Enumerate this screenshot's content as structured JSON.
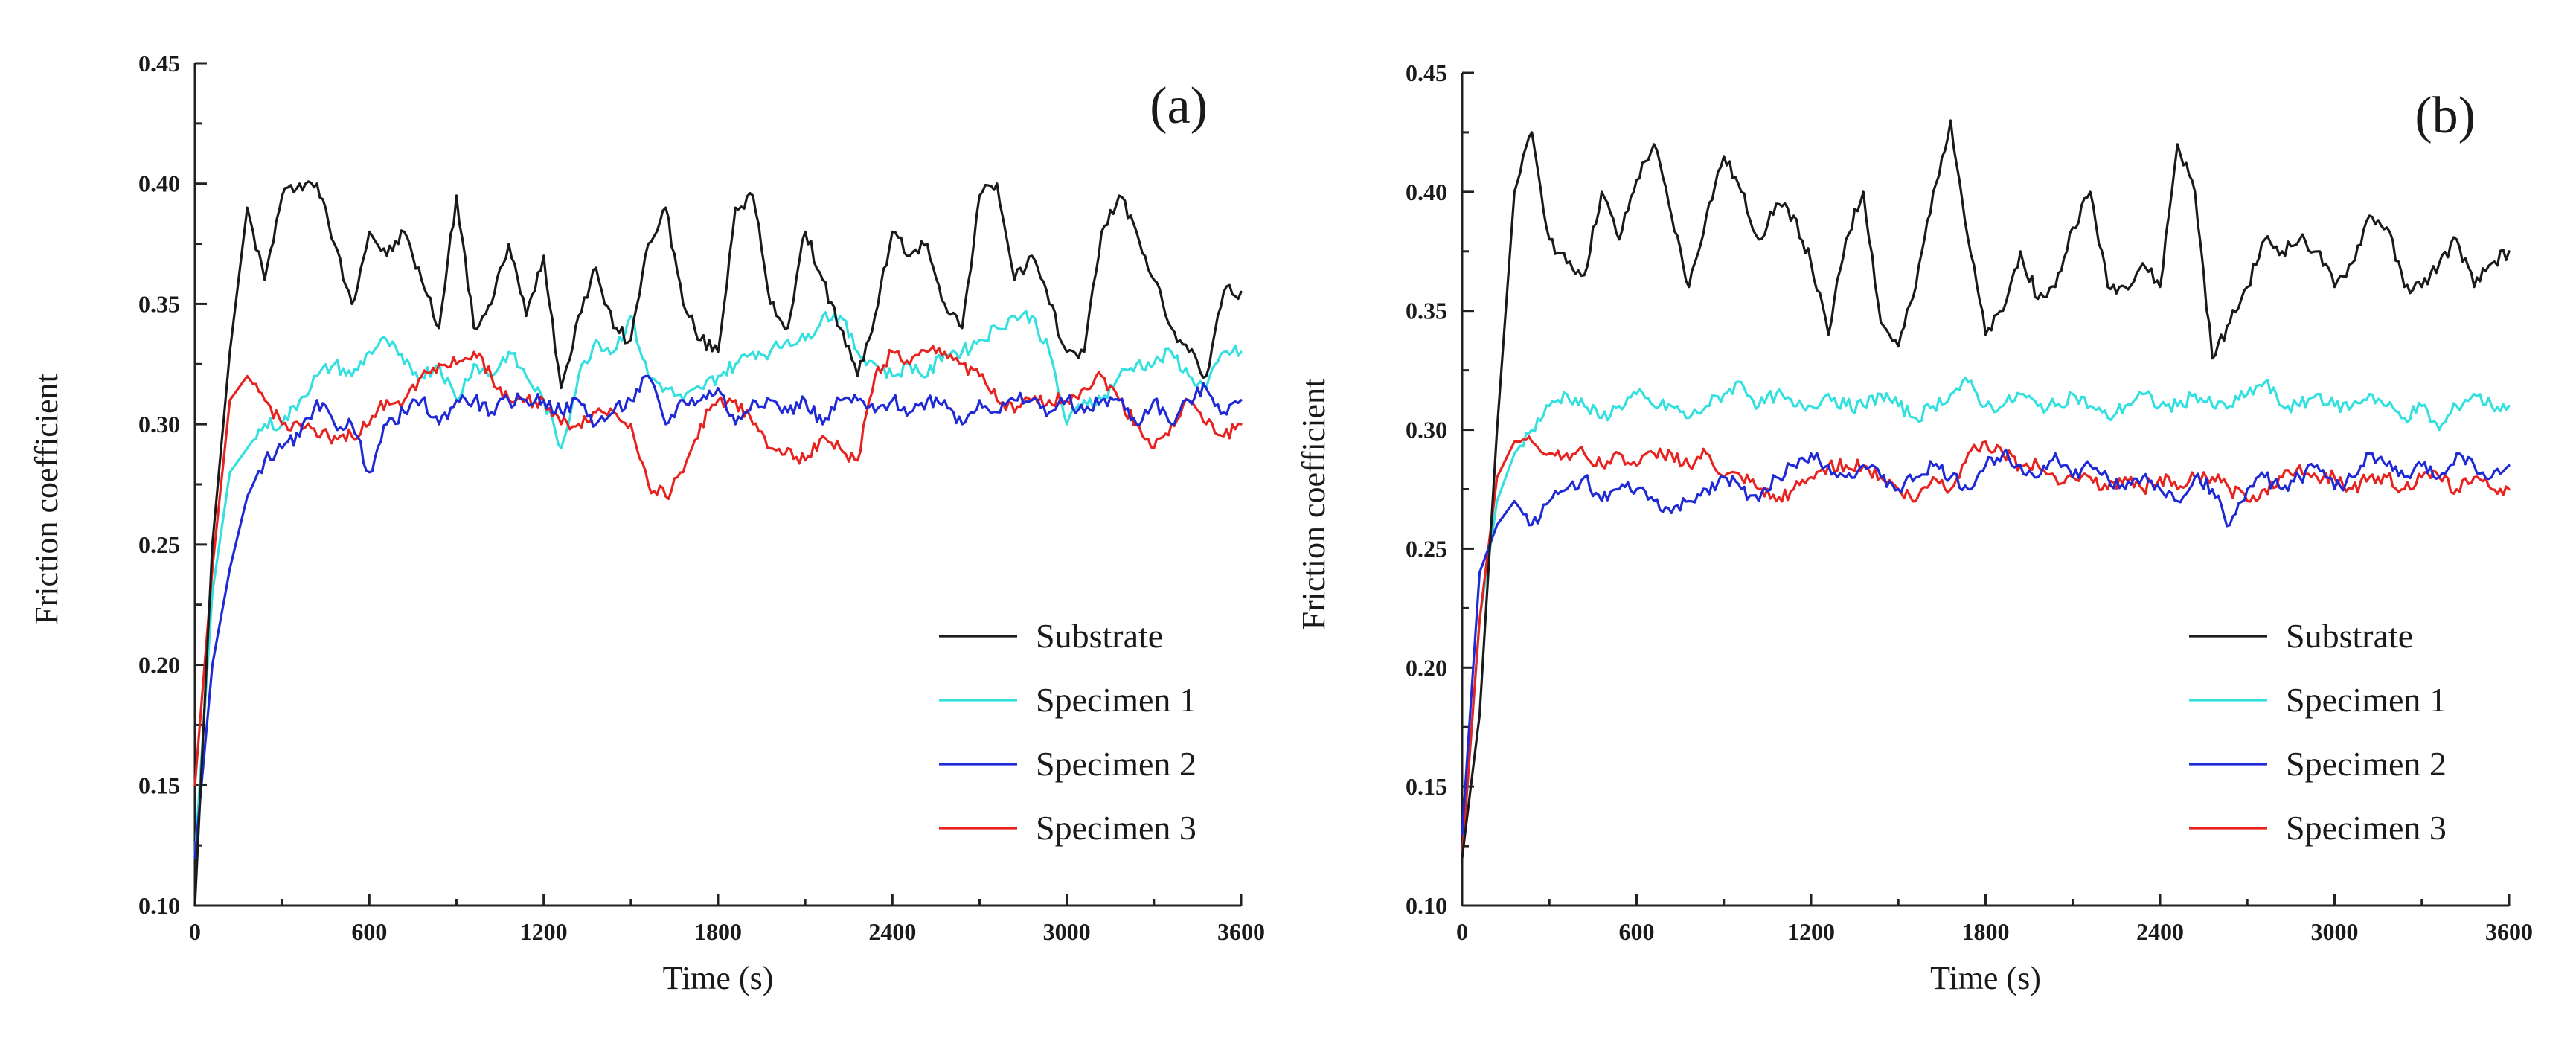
{
  "chart_data": [
    {
      "type": "line",
      "panel_label": "(a)",
      "xlabel": "Time (s)",
      "ylabel": "Friction coefficient",
      "xlim": [
        0,
        3600
      ],
      "ylim": [
        0.1,
        0.45
      ],
      "xticks": [
        "0",
        "600",
        "1200",
        "1800",
        "2400",
        "3000",
        "3600"
      ],
      "yticks": [
        "0.10",
        "0.15",
        "0.20",
        "0.25",
        "0.30",
        "0.35",
        "0.40",
        "0.45"
      ],
      "legend_position": "lower-right",
      "grid": false,
      "series": [
        {
          "name": "Substrate",
          "color": "#1a1a1a",
          "x": [
            0,
            60,
            120,
            180,
            240,
            300,
            360,
            420,
            480,
            540,
            600,
            660,
            720,
            780,
            840,
            900,
            960,
            1020,
            1080,
            1140,
            1200,
            1260,
            1320,
            1380,
            1440,
            1500,
            1560,
            1620,
            1680,
            1740,
            1800,
            1860,
            1920,
            1980,
            2040,
            2100,
            2160,
            2220,
            2280,
            2340,
            2400,
            2460,
            2520,
            2580,
            2640,
            2700,
            2760,
            2820,
            2880,
            2940,
            3000,
            3060,
            3120,
            3180,
            3240,
            3300,
            3360,
            3420,
            3480,
            3540,
            3600
          ],
          "y": [
            0.1,
            0.25,
            0.33,
            0.39,
            0.36,
            0.395,
            0.4,
            0.4,
            0.375,
            0.35,
            0.38,
            0.37,
            0.38,
            0.36,
            0.34,
            0.395,
            0.34,
            0.35,
            0.375,
            0.345,
            0.37,
            0.315,
            0.345,
            0.365,
            0.34,
            0.335,
            0.375,
            0.39,
            0.35,
            0.335,
            0.33,
            0.39,
            0.395,
            0.35,
            0.34,
            0.38,
            0.36,
            0.34,
            0.32,
            0.345,
            0.38,
            0.37,
            0.375,
            0.35,
            0.34,
            0.395,
            0.4,
            0.36,
            0.37,
            0.35,
            0.33,
            0.33,
            0.38,
            0.395,
            0.38,
            0.36,
            0.34,
            0.33,
            0.32,
            0.355,
            0.355
          ]
        },
        {
          "name": "Specimen 1",
          "color": "#33e0e0",
          "x": [
            0,
            60,
            120,
            180,
            240,
            300,
            360,
            420,
            480,
            540,
            600,
            660,
            720,
            780,
            840,
            900,
            960,
            1020,
            1080,
            1140,
            1200,
            1260,
            1320,
            1380,
            1440,
            1500,
            1560,
            1620,
            1680,
            1740,
            1800,
            1860,
            1920,
            1980,
            2040,
            2100,
            2160,
            2220,
            2280,
            2340,
            2400,
            2460,
            2520,
            2580,
            2640,
            2700,
            2760,
            2820,
            2880,
            2940,
            3000,
            3060,
            3120,
            3180,
            3240,
            3300,
            3360,
            3420,
            3480,
            3540,
            3600
          ],
          "y": [
            0.12,
            0.23,
            0.28,
            0.29,
            0.3,
            0.3,
            0.31,
            0.32,
            0.325,
            0.32,
            0.33,
            0.335,
            0.325,
            0.32,
            0.325,
            0.31,
            0.325,
            0.32,
            0.33,
            0.32,
            0.31,
            0.29,
            0.32,
            0.335,
            0.33,
            0.345,
            0.32,
            0.315,
            0.31,
            0.315,
            0.32,
            0.325,
            0.33,
            0.33,
            0.335,
            0.335,
            0.345,
            0.345,
            0.33,
            0.325,
            0.32,
            0.325,
            0.32,
            0.33,
            0.33,
            0.335,
            0.34,
            0.345,
            0.345,
            0.33,
            0.3,
            0.31,
            0.31,
            0.32,
            0.325,
            0.325,
            0.33,
            0.32,
            0.315,
            0.33,
            0.33
          ]
        },
        {
          "name": "Specimen 2",
          "color": "#1f2ad6",
          "x": [
            0,
            60,
            120,
            180,
            240,
            300,
            360,
            420,
            480,
            540,
            600,
            660,
            720,
            780,
            840,
            900,
            960,
            1020,
            1080,
            1140,
            1200,
            1260,
            1320,
            1380,
            1440,
            1500,
            1560,
            1620,
            1680,
            1740,
            1800,
            1860,
            1920,
            1980,
            2040,
            2100,
            2160,
            2220,
            2280,
            2340,
            2400,
            2460,
            2520,
            2580,
            2640,
            2700,
            2760,
            2820,
            2880,
            2940,
            3000,
            3060,
            3120,
            3180,
            3240,
            3300,
            3360,
            3420,
            3480,
            3540,
            3600
          ],
          "y": [
            0.12,
            0.2,
            0.24,
            0.27,
            0.285,
            0.29,
            0.295,
            0.31,
            0.3,
            0.3,
            0.28,
            0.3,
            0.305,
            0.31,
            0.3,
            0.31,
            0.31,
            0.305,
            0.31,
            0.31,
            0.31,
            0.305,
            0.31,
            0.3,
            0.305,
            0.31,
            0.32,
            0.3,
            0.31,
            0.31,
            0.315,
            0.3,
            0.31,
            0.31,
            0.305,
            0.31,
            0.3,
            0.31,
            0.31,
            0.305,
            0.31,
            0.305,
            0.31,
            0.31,
            0.3,
            0.31,
            0.305,
            0.31,
            0.31,
            0.305,
            0.31,
            0.305,
            0.31,
            0.31,
            0.3,
            0.31,
            0.3,
            0.31,
            0.315,
            0.305,
            0.31
          ]
        },
        {
          "name": "Specimen 3",
          "color": "#e8231f",
          "x": [
            0,
            60,
            120,
            180,
            240,
            300,
            360,
            420,
            480,
            540,
            600,
            660,
            720,
            780,
            840,
            900,
            960,
            1020,
            1080,
            1140,
            1200,
            1260,
            1320,
            1380,
            1440,
            1500,
            1560,
            1620,
            1680,
            1740,
            1800,
            1860,
            1920,
            1980,
            2040,
            2100,
            2160,
            2220,
            2280,
            2340,
            2400,
            2460,
            2520,
            2580,
            2640,
            2700,
            2760,
            2820,
            2880,
            2940,
            3000,
            3060,
            3120,
            3180,
            3240,
            3300,
            3360,
            3420,
            3480,
            3540,
            3600
          ],
          "y": [
            0.15,
            0.24,
            0.31,
            0.32,
            0.31,
            0.3,
            0.3,
            0.295,
            0.295,
            0.295,
            0.3,
            0.31,
            0.31,
            0.32,
            0.325,
            0.325,
            0.33,
            0.32,
            0.31,
            0.31,
            0.31,
            0.3,
            0.3,
            0.305,
            0.305,
            0.3,
            0.275,
            0.27,
            0.28,
            0.3,
            0.31,
            0.31,
            0.3,
            0.29,
            0.29,
            0.285,
            0.295,
            0.29,
            0.285,
            0.32,
            0.33,
            0.325,
            0.33,
            0.33,
            0.325,
            0.32,
            0.31,
            0.305,
            0.31,
            0.31,
            0.31,
            0.315,
            0.32,
            0.31,
            0.3,
            0.29,
            0.3,
            0.31,
            0.3,
            0.295,
            0.3
          ]
        }
      ]
    },
    {
      "type": "line",
      "panel_label": "(b)",
      "xlabel": "Time (s)",
      "ylabel": "Friction coefficient",
      "xlim": [
        0,
        3600
      ],
      "ylim": [
        0.1,
        0.45
      ],
      "xticks": [
        "0",
        "600",
        "1200",
        "1800",
        "2400",
        "3000",
        "3600"
      ],
      "yticks": [
        "0.10",
        "0.15",
        "0.20",
        "0.25",
        "0.30",
        "0.35",
        "0.40",
        "0.45"
      ],
      "legend_position": "lower-right",
      "grid": false,
      "series": [
        {
          "name": "Substrate",
          "color": "#1a1a1a",
          "x": [
            0,
            60,
            120,
            180,
            240,
            300,
            360,
            420,
            480,
            540,
            600,
            660,
            720,
            780,
            840,
            900,
            960,
            1020,
            1080,
            1140,
            1200,
            1260,
            1320,
            1380,
            1440,
            1500,
            1560,
            1620,
            1680,
            1740,
            1800,
            1860,
            1920,
            1980,
            2040,
            2100,
            2160,
            2220,
            2280,
            2340,
            2400,
            2460,
            2520,
            2580,
            2640,
            2700,
            2760,
            2820,
            2880,
            2940,
            3000,
            3060,
            3120,
            3180,
            3240,
            3300,
            3360,
            3420,
            3480,
            3540,
            3600
          ],
          "y": [
            0.12,
            0.18,
            0.3,
            0.4,
            0.425,
            0.38,
            0.37,
            0.365,
            0.4,
            0.38,
            0.405,
            0.42,
            0.39,
            0.36,
            0.39,
            0.415,
            0.4,
            0.38,
            0.395,
            0.39,
            0.37,
            0.34,
            0.38,
            0.4,
            0.345,
            0.335,
            0.36,
            0.4,
            0.43,
            0.38,
            0.34,
            0.35,
            0.375,
            0.355,
            0.36,
            0.385,
            0.4,
            0.36,
            0.36,
            0.37,
            0.36,
            0.42,
            0.4,
            0.33,
            0.345,
            0.36,
            0.38,
            0.375,
            0.38,
            0.375,
            0.36,
            0.37,
            0.39,
            0.385,
            0.36,
            0.36,
            0.37,
            0.38,
            0.36,
            0.37,
            0.375
          ]
        },
        {
          "name": "Specimen 1",
          "color": "#33e0e0",
          "x": [
            0,
            60,
            120,
            180,
            240,
            300,
            360,
            420,
            480,
            540,
            600,
            660,
            720,
            780,
            840,
            900,
            960,
            1020,
            1080,
            1140,
            1200,
            1260,
            1320,
            1380,
            1440,
            1500,
            1560,
            1620,
            1680,
            1740,
            1800,
            1860,
            1920,
            1980,
            2040,
            2100,
            2160,
            2220,
            2280,
            2340,
            2400,
            2460,
            2520,
            2580,
            2640,
            2700,
            2760,
            2820,
            2880,
            2940,
            3000,
            3060,
            3120,
            3180,
            3240,
            3300,
            3360,
            3420,
            3480,
            3540,
            3600
          ],
          "y": [
            0.12,
            0.22,
            0.27,
            0.29,
            0.3,
            0.31,
            0.315,
            0.31,
            0.305,
            0.31,
            0.315,
            0.31,
            0.31,
            0.305,
            0.31,
            0.315,
            0.32,
            0.31,
            0.315,
            0.31,
            0.31,
            0.315,
            0.31,
            0.31,
            0.315,
            0.31,
            0.305,
            0.31,
            0.315,
            0.32,
            0.31,
            0.31,
            0.315,
            0.31,
            0.31,
            0.315,
            0.31,
            0.305,
            0.31,
            0.315,
            0.31,
            0.31,
            0.315,
            0.31,
            0.31,
            0.315,
            0.32,
            0.31,
            0.31,
            0.315,
            0.31,
            0.31,
            0.315,
            0.31,
            0.305,
            0.31,
            0.3,
            0.31,
            0.315,
            0.31,
            0.31
          ]
        },
        {
          "name": "Specimen 2",
          "color": "#1f2ad6",
          "x": [
            0,
            60,
            120,
            180,
            240,
            300,
            360,
            420,
            480,
            540,
            600,
            660,
            720,
            780,
            840,
            900,
            960,
            1020,
            1080,
            1140,
            1200,
            1260,
            1320,
            1380,
            1440,
            1500,
            1560,
            1620,
            1680,
            1740,
            1800,
            1860,
            1920,
            1980,
            2040,
            2100,
            2160,
            2220,
            2280,
            2340,
            2400,
            2460,
            2520,
            2580,
            2640,
            2700,
            2760,
            2820,
            2880,
            2940,
            3000,
            3060,
            3120,
            3180,
            3240,
            3300,
            3360,
            3420,
            3480,
            3540,
            3600
          ],
          "y": [
            0.13,
            0.24,
            0.26,
            0.27,
            0.26,
            0.27,
            0.275,
            0.28,
            0.27,
            0.275,
            0.275,
            0.27,
            0.265,
            0.27,
            0.275,
            0.28,
            0.275,
            0.27,
            0.28,
            0.285,
            0.29,
            0.285,
            0.28,
            0.285,
            0.28,
            0.275,
            0.28,
            0.285,
            0.28,
            0.275,
            0.285,
            0.29,
            0.285,
            0.28,
            0.29,
            0.28,
            0.285,
            0.28,
            0.275,
            0.28,
            0.275,
            0.27,
            0.28,
            0.275,
            0.26,
            0.275,
            0.28,
            0.275,
            0.28,
            0.285,
            0.275,
            0.28,
            0.29,
            0.285,
            0.28,
            0.285,
            0.28,
            0.29,
            0.285,
            0.28,
            0.285
          ]
        },
        {
          "name": "Specimen 3",
          "color": "#e8231f",
          "x": [
            0,
            60,
            120,
            180,
            240,
            300,
            360,
            420,
            480,
            540,
            600,
            660,
            720,
            780,
            840,
            900,
            960,
            1020,
            1080,
            1140,
            1200,
            1260,
            1320,
            1380,
            1440,
            1500,
            1560,
            1620,
            1680,
            1740,
            1800,
            1860,
            1920,
            1980,
            2040,
            2100,
            2160,
            2220,
            2280,
            2340,
            2400,
            2460,
            2520,
            2580,
            2640,
            2700,
            2760,
            2820,
            2880,
            2940,
            3000,
            3060,
            3120,
            3180,
            3240,
            3300,
            3360,
            3420,
            3480,
            3540,
            3600
          ],
          "y": [
            0.12,
            0.22,
            0.28,
            0.295,
            0.295,
            0.29,
            0.29,
            0.29,
            0.285,
            0.29,
            0.285,
            0.29,
            0.29,
            0.285,
            0.29,
            0.28,
            0.28,
            0.275,
            0.27,
            0.275,
            0.28,
            0.285,
            0.285,
            0.285,
            0.28,
            0.275,
            0.27,
            0.28,
            0.275,
            0.29,
            0.295,
            0.29,
            0.285,
            0.285,
            0.28,
            0.28,
            0.28,
            0.275,
            0.28,
            0.275,
            0.28,
            0.275,
            0.28,
            0.28,
            0.275,
            0.27,
            0.275,
            0.28,
            0.285,
            0.28,
            0.28,
            0.275,
            0.28,
            0.28,
            0.275,
            0.28,
            0.28,
            0.275,
            0.28,
            0.275,
            0.275
          ]
        }
      ]
    }
  ]
}
